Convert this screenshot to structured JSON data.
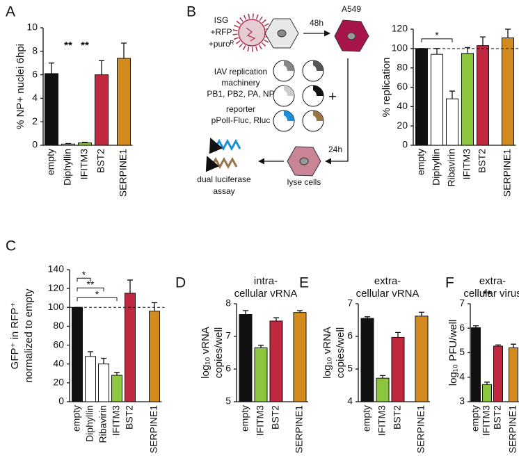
{
  "chart_data": [
    {
      "type": "bar",
      "panel_label": "A",
      "ylabel": [
        "% NP+ nuclei 6hpi"
      ],
      "categories": [
        "empty",
        "Diphyllin",
        "IFITM3",
        "BST2",
        "SERPINE1"
      ],
      "values": [
        6.1,
        0.1,
        0.2,
        6.0,
        7.4
      ],
      "errors": [
        0.9,
        0.05,
        0.05,
        1.2,
        1.3
      ],
      "colors": [
        "#111111",
        "#ffffff",
        "#8cc63e",
        "#c0283f",
        "#d38b1f"
      ],
      "ylim": [
        0,
        10
      ],
      "yticks": [
        0,
        2,
        4,
        6,
        8,
        10
      ],
      "annotations": [
        {
          "text": "**",
          "category": "Diphyllin"
        },
        {
          "text": "**",
          "category": "IFITM3"
        }
      ]
    },
    {
      "type": "bar",
      "panel_label": "B",
      "ylabel": [
        "% replication"
      ],
      "categories": [
        "empty",
        "Diphyllin",
        "Ribavirin",
        "IFITM3",
        "BST2",
        "SERPINE1"
      ],
      "values": [
        100,
        94,
        48,
        95,
        103,
        111
      ],
      "errors": [
        0,
        6,
        8,
        6,
        9,
        9
      ],
      "colors": [
        "#111111",
        "#ffffff",
        "#ffffff",
        "#8cc63e",
        "#c0283f",
        "#d38b1f"
      ],
      "ylim": [
        0,
        120
      ],
      "yticks": [
        0,
        20,
        40,
        60,
        80,
        100,
        120
      ],
      "reference_line": 100,
      "brackets": [
        {
          "text": "*",
          "from": "empty",
          "to": "Ribavirin"
        }
      ]
    },
    {
      "type": "bar",
      "panel_label": "C",
      "ylabel": [
        "GFP⁺ in RFP⁺",
        "normalized to empty"
      ],
      "categories": [
        "empty",
        "Diphyllin",
        "Ribavirin",
        "IFITM3",
        "BST2",
        "SERPINE1"
      ],
      "values": [
        100,
        48,
        40,
        28,
        115,
        96
      ],
      "errors": [
        0,
        5,
        6,
        3,
        14,
        9
      ],
      "colors": [
        "#111111",
        "#ffffff",
        "#ffffff",
        "#8cc63e",
        "#c0283f",
        "#d38b1f"
      ],
      "ylim": [
        0,
        140
      ],
      "yticks": [
        0,
        20,
        40,
        60,
        80,
        100,
        120,
        140
      ],
      "reference_line": 100,
      "brackets": [
        {
          "text": "*",
          "from": "empty",
          "to": "Diphyllin"
        },
        {
          "text": "**",
          "from": "empty",
          "to": "Ribavirin"
        },
        {
          "text": "*",
          "from": "empty",
          "to": "IFITM3"
        }
      ]
    },
    {
      "type": "bar",
      "panel_label": "D",
      "title": [
        "intra-",
        "cellular vRNA"
      ],
      "ylabel": [
        "log₁₀ vRNA",
        "copies/well"
      ],
      "categories": [
        "empty",
        "IFITM3",
        "BST2",
        "SERPINE1"
      ],
      "values": [
        7.67,
        6.65,
        7.47,
        7.73
      ],
      "errors": [
        0.12,
        0.08,
        0.1,
        0.06
      ],
      "colors": [
        "#111111",
        "#8cc63e",
        "#c0283f",
        "#d38b1f"
      ],
      "ylim": [
        5,
        8
      ],
      "yticks": [
        5,
        6,
        7,
        8
      ]
    },
    {
      "type": "bar",
      "panel_label": "E",
      "title": [
        "extra-",
        "cellular vRNA"
      ],
      "ylabel": [
        "log₁₀ vRNA",
        "copies/well"
      ],
      "categories": [
        "empty",
        "IFITM3",
        "BST2",
        "SERPINE1"
      ],
      "values": [
        6.55,
        4.72,
        5.97,
        6.62
      ],
      "errors": [
        0.05,
        0.08,
        0.15,
        0.12
      ],
      "colors": [
        "#111111",
        "#8cc63e",
        "#c0283f",
        "#d38b1f"
      ],
      "ylim": [
        4,
        7
      ],
      "yticks": [
        4,
        5,
        6,
        7
      ]
    },
    {
      "type": "bar",
      "panel_label": "F",
      "title": [
        "extra-",
        "cellular virus"
      ],
      "ylabel": [
        "log₁₀ PFU/well"
      ],
      "categories": [
        "empty",
        "IFITM3",
        "BST2",
        "SERPINE1"
      ],
      "values": [
        6.02,
        3.7,
        5.27,
        5.2
      ],
      "errors": [
        0.08,
        0.1,
        0.05,
        0.15
      ],
      "colors": [
        "#111111",
        "#8cc63e",
        "#c0283f",
        "#d38b1f"
      ],
      "ylim": [
        3,
        7
      ],
      "yticks": [
        3,
        4,
        5,
        6,
        7
      ],
      "annotations": [
        {
          "text": "**",
          "category": "IFITM3"
        }
      ]
    }
  ],
  "diagram": {
    "isg": [
      "ISG",
      "+RFP",
      "+puroᴿ"
    ],
    "step1": "48h",
    "cell_line": "A549",
    "machinery": [
      "IAV replication",
      "machinery",
      "PB1, PB2, PA, NP"
    ],
    "plus": "+",
    "reporter": [
      "reporter",
      "pPolI-Fluc, Rluc"
    ],
    "step2": "24h",
    "lyse": "lyse cells",
    "assay": [
      "dual luciferase",
      "assay"
    ]
  }
}
